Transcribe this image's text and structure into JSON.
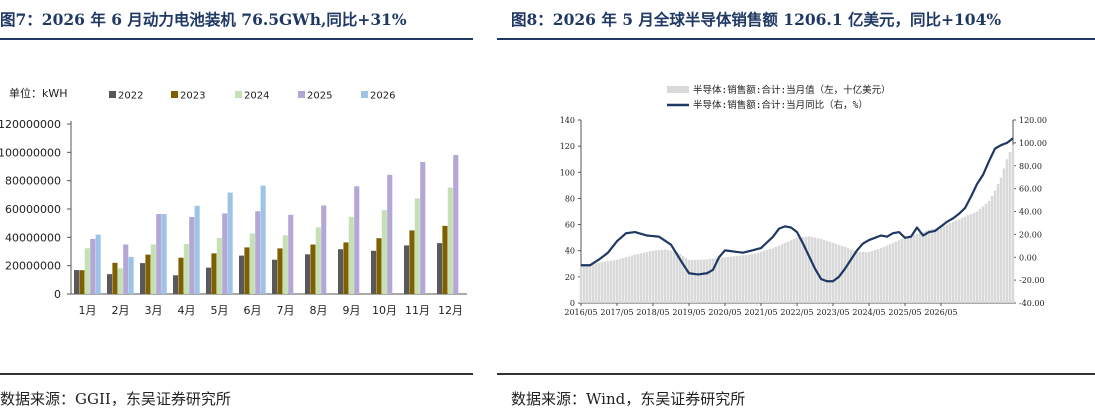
{
  "left": {
    "title": "图7：2026 年 6 月动力电池装机 76.5GWh,同比+31%",
    "source": "数据来源：GGII，东吴证券研究所",
    "chart_data": {
      "type": "bar",
      "unit_label": "单位：kWH",
      "categories": [
        "1月",
        "2月",
        "3月",
        "4月",
        "5月",
        "6月",
        "7月",
        "8月",
        "9月",
        "10月",
        "11月",
        "12月"
      ],
      "series": [
        {
          "name": "2022",
          "color": "#595959",
          "values": [
            16900000,
            14000000,
            21800000,
            13200000,
            18600000,
            27100000,
            24200000,
            28000000,
            31600000,
            30500000,
            34300000,
            35900000
          ]
        },
        {
          "name": "2023",
          "color": "#7f6000",
          "values": [
            16800000,
            22000000,
            27800000,
            25600000,
            28700000,
            32900000,
            32200000,
            34900000,
            36400000,
            39400000,
            44900000,
            48100000
          ]
        },
        {
          "name": "2024",
          "color": "#c5e0b4",
          "values": [
            32300000,
            18100000,
            35000000,
            35300000,
            39600000,
            42800000,
            41400000,
            47000000,
            54500000,
            59200000,
            67500000,
            75100000
          ]
        },
        {
          "name": "2025",
          "color": "#b4a7d6",
          "values": [
            38900000,
            34900000,
            56500000,
            54400000,
            56900000,
            58400000,
            55900000,
            62500000,
            76000000,
            84100000,
            93200000,
            98100000
          ]
        },
        {
          "name": "2026",
          "color": "#9dc3e6",
          "values": [
            41900000,
            26200000,
            56400000,
            62300000,
            71600000,
            76500000,
            null,
            null,
            null,
            null,
            null,
            null
          ]
        }
      ],
      "yticks": [
        "0",
        "20000000",
        "40000000",
        "60000000",
        "80000000",
        "100000000",
        "120000000"
      ],
      "ylim": [
        0,
        120000000
      ],
      "legend_position": "top"
    }
  },
  "right": {
    "title": "图8：2026 年 5 月全球半导体销售额 1206.1 亿美元，同比+104%",
    "source": "数据来源：Wind，东吴证券研究所",
    "chart_data": {
      "type": "bar+line",
      "legend": [
        {
          "name": "半导体:销售额:合计:当月值（左，十亿美元）",
          "color": "#d9d9d9"
        },
        {
          "name": "半导体:销售额:合计:当月同比（右，%）",
          "color": "#1f3864"
        }
      ],
      "x_start": "2016/05",
      "x_end": "2026/05",
      "xticks": [
        "2016/05",
        "2017/05",
        "2018/05",
        "2019/05",
        "2020/05",
        "2021/05",
        "2022/05",
        "2023/05",
        "2024/05",
        "2025/05",
        "2026/05"
      ],
      "left_yticks": [
        "0",
        "20",
        "40",
        "60",
        "80",
        "100",
        "120",
        "140"
      ],
      "left_ylim": [
        0,
        140
      ],
      "right_yticks": [
        "-40.00",
        "-20.00",
        "0.00",
        "20.00",
        "40.00",
        "60.00",
        "80.00",
        "100.00",
        "120.00"
      ],
      "right_ylim": [
        -40,
        120
      ],
      "sales_anchors": [
        [
          0,
          28
        ],
        [
          6,
          31
        ],
        [
          12,
          33
        ],
        [
          18,
          37
        ],
        [
          24,
          40
        ],
        [
          28,
          41
        ],
        [
          32,
          39
        ],
        [
          36,
          33
        ],
        [
          40,
          33
        ],
        [
          44,
          34
        ],
        [
          48,
          35
        ],
        [
          52,
          36
        ],
        [
          56,
          37
        ],
        [
          60,
          39
        ],
        [
          64,
          42
        ],
        [
          68,
          46
        ],
        [
          72,
          50
        ],
        [
          76,
          51
        ],
        [
          80,
          49
        ],
        [
          84,
          46
        ],
        [
          88,
          43
        ],
        [
          92,
          39
        ],
        [
          96,
          39
        ],
        [
          100,
          42
        ],
        [
          104,
          46
        ],
        [
          108,
          50
        ],
        [
          112,
          53
        ],
        [
          116,
          56
        ],
        [
          120,
          58
        ],
        [
          124,
          62
        ],
        [
          128,
          66
        ],
        [
          132,
          70
        ],
        [
          136,
          78
        ],
        [
          138,
          86
        ],
        [
          140,
          96
        ],
        [
          142,
          110
        ],
        [
          144,
          121
        ]
      ],
      "yoy_anchors": [
        [
          0,
          -7
        ],
        [
          3,
          -7
        ],
        [
          6,
          -2
        ],
        [
          9,
          4
        ],
        [
          12,
          14
        ],
        [
          15,
          21
        ],
        [
          18,
          22
        ],
        [
          22,
          19
        ],
        [
          26,
          18
        ],
        [
          30,
          11
        ],
        [
          34,
          -6
        ],
        [
          36,
          -14
        ],
        [
          39,
          -15
        ],
        [
          42,
          -14
        ],
        [
          44,
          -11
        ],
        [
          46,
          0
        ],
        [
          48,
          6
        ],
        [
          51,
          5
        ],
        [
          54,
          4
        ],
        [
          57,
          6
        ],
        [
          60,
          8
        ],
        [
          62,
          13
        ],
        [
          64,
          18
        ],
        [
          66,
          25
        ],
        [
          68,
          27
        ],
        [
          70,
          26
        ],
        [
          72,
          22
        ],
        [
          74,
          12
        ],
        [
          76,
          1
        ],
        [
          78,
          -10
        ],
        [
          80,
          -19
        ],
        [
          82,
          -21
        ],
        [
          84,
          -21
        ],
        [
          86,
          -17
        ],
        [
          88,
          -10
        ],
        [
          90,
          -2
        ],
        [
          92,
          6
        ],
        [
          94,
          12
        ],
        [
          96,
          15
        ],
        [
          98,
          17
        ],
        [
          100,
          19
        ],
        [
          102,
          18
        ],
        [
          104,
          21
        ],
        [
          106,
          22
        ],
        [
          108,
          17
        ],
        [
          110,
          18
        ],
        [
          112,
          26
        ],
        [
          114,
          19
        ],
        [
          116,
          22
        ],
        [
          118,
          23
        ],
        [
          120,
          27
        ],
        [
          122,
          31
        ],
        [
          124,
          34
        ],
        [
          126,
          38
        ],
        [
          128,
          43
        ],
        [
          130,
          53
        ],
        [
          132,
          64
        ],
        [
          134,
          72
        ],
        [
          136,
          84
        ],
        [
          138,
          95
        ],
        [
          140,
          98
        ],
        [
          142,
          100
        ],
        [
          144,
          104
        ]
      ]
    }
  }
}
